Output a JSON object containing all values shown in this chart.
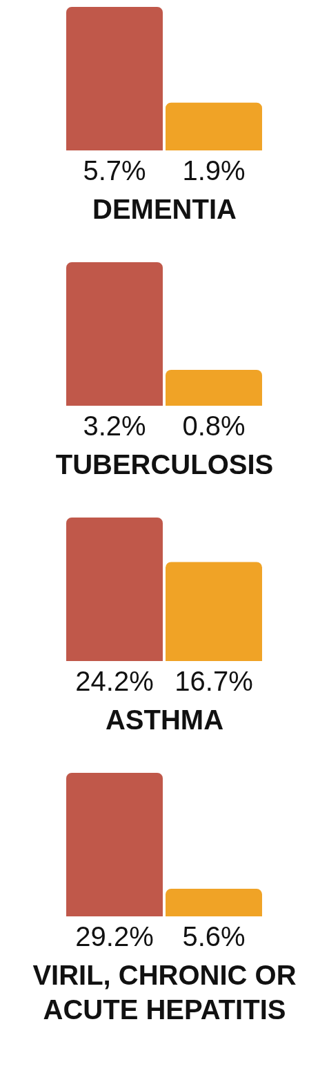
{
  "chart_data": [
    {
      "type": "bar",
      "title": "DEMENTIA",
      "categories": [
        null,
        null
      ],
      "values": [
        5.7,
        1.9
      ],
      "colors": [
        "#c0584a",
        "#f0a326"
      ],
      "value_labels": [
        "5.7%",
        "1.9%"
      ]
    },
    {
      "type": "bar",
      "title": "TUBERCULOSIS",
      "categories": [
        null,
        null
      ],
      "values": [
        3.2,
        0.8
      ],
      "colors": [
        "#c0584a",
        "#f0a326"
      ],
      "value_labels": [
        "3.2%",
        "0.8%"
      ]
    },
    {
      "type": "bar",
      "title": "ASTHMA",
      "categories": [
        null,
        null
      ],
      "values": [
        24.2,
        16.7
      ],
      "colors": [
        "#c0584a",
        "#f0a326"
      ],
      "value_labels": [
        "24.2%",
        "16.7%"
      ]
    },
    {
      "type": "bar",
      "title": "VIRIL, CHRONIC OR ACUTE HEPATITIS",
      "categories": [
        null,
        null
      ],
      "values": [
        29.2,
        5.6
      ],
      "colors": [
        "#c0584a",
        "#f0a326"
      ],
      "value_labels": [
        "29.2%",
        "5.6%"
      ]
    }
  ]
}
